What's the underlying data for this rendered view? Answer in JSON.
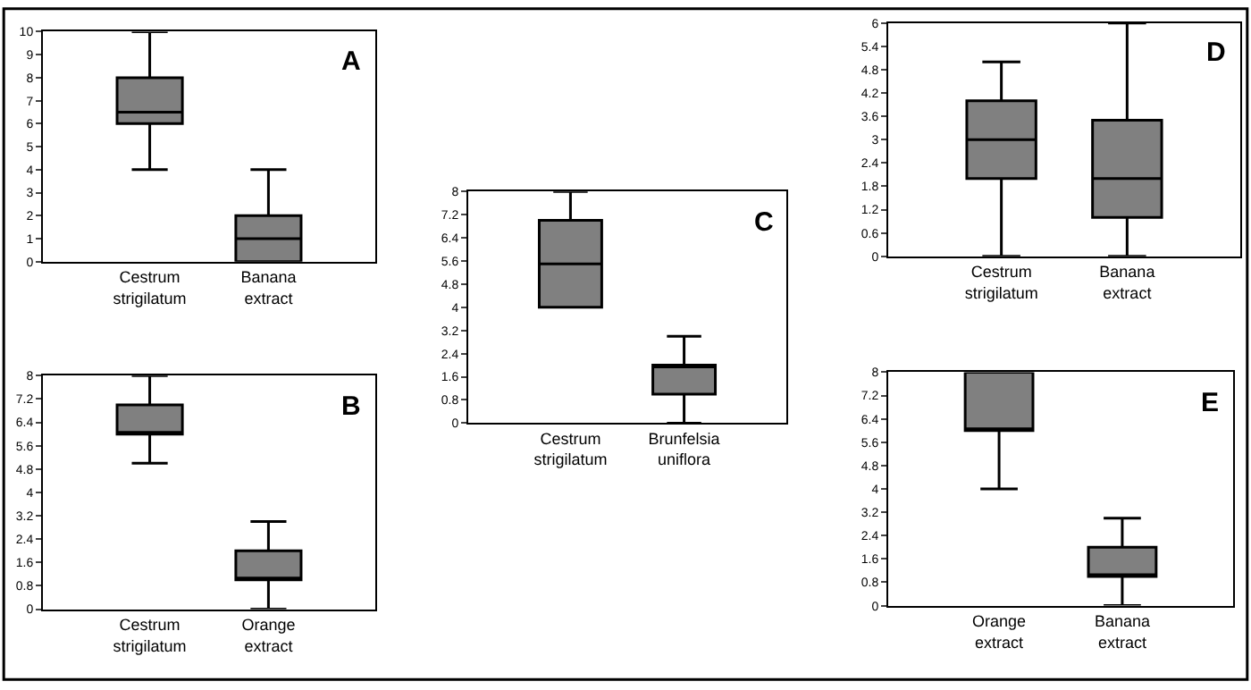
{
  "chart_data": [
    {
      "type": "box",
      "title": "A",
      "categories": [
        "Cestrum strigilatum",
        "Banana extract"
      ],
      "color": "#808080",
      "ylim": [
        0,
        10
      ],
      "yticks": [
        0,
        1,
        2,
        3,
        4,
        5,
        6,
        7,
        8,
        9,
        10
      ],
      "boxes": [
        {
          "low": 4,
          "q1": 6,
          "median": 6.5,
          "q3": 8,
          "high": 10
        },
        {
          "low": 0,
          "q1": 0,
          "median": 1,
          "q3": 2,
          "high": 4
        }
      ]
    },
    {
      "type": "box",
      "title": "B",
      "categories": [
        "Cestrum strigilatum",
        "Orange extract"
      ],
      "color": "#808080",
      "ylim": [
        0,
        8
      ],
      "yticks": [
        0,
        0.8,
        1.6,
        2.4,
        3.2,
        4,
        4.8,
        5.6,
        6.4,
        7.2,
        8
      ],
      "boxes": [
        {
          "low": 5,
          "q1": 6,
          "median": 6,
          "q3": 7,
          "high": 8
        },
        {
          "low": 0,
          "q1": 1,
          "median": 1,
          "q3": 2,
          "high": 3
        }
      ]
    },
    {
      "type": "box",
      "title": "C",
      "categories": [
        "Cestrum strigilatum",
        "Brunfelsia uniflora"
      ],
      "color": "#808080",
      "ylim": [
        0,
        8
      ],
      "yticks": [
        0,
        0.8,
        1.6,
        2.4,
        3.2,
        4,
        4.8,
        5.6,
        6.4,
        7.2,
        8
      ],
      "boxes": [
        {
          "low": 4,
          "q1": 4,
          "median": 5.5,
          "q3": 7,
          "high": 8
        },
        {
          "low": 0,
          "q1": 1,
          "median": 2,
          "q3": 2,
          "high": 3
        }
      ]
    },
    {
      "type": "box",
      "title": "D",
      "categories": [
        "Cestrum strigilatum",
        "Banana extract"
      ],
      "color": "#808080",
      "ylim": [
        0,
        6
      ],
      "yticks": [
        0,
        0.6,
        1.2,
        1.8,
        2.4,
        3,
        3.6,
        4.2,
        4.8,
        5.4,
        6
      ],
      "boxes": [
        {
          "low": 0,
          "q1": 2,
          "median": 3,
          "q3": 4,
          "high": 5
        },
        {
          "low": 0,
          "q1": 1,
          "median": 2,
          "q3": 3.5,
          "high": 6
        }
      ]
    },
    {
      "type": "box",
      "title": "E",
      "categories": [
        "Orange extract",
        "Banana extract"
      ],
      "color": "#808080",
      "ylim": [
        0,
        8
      ],
      "yticks": [
        0,
        0.8,
        1.6,
        2.4,
        3.2,
        4,
        4.8,
        5.6,
        6.4,
        7.2,
        8
      ],
      "boxes": [
        {
          "low": 4,
          "q1": 6,
          "median": 6,
          "q3": 8,
          "high": 8
        },
        {
          "low": 0,
          "q1": 1,
          "median": 1,
          "q3": 2,
          "high": 3
        }
      ]
    }
  ]
}
